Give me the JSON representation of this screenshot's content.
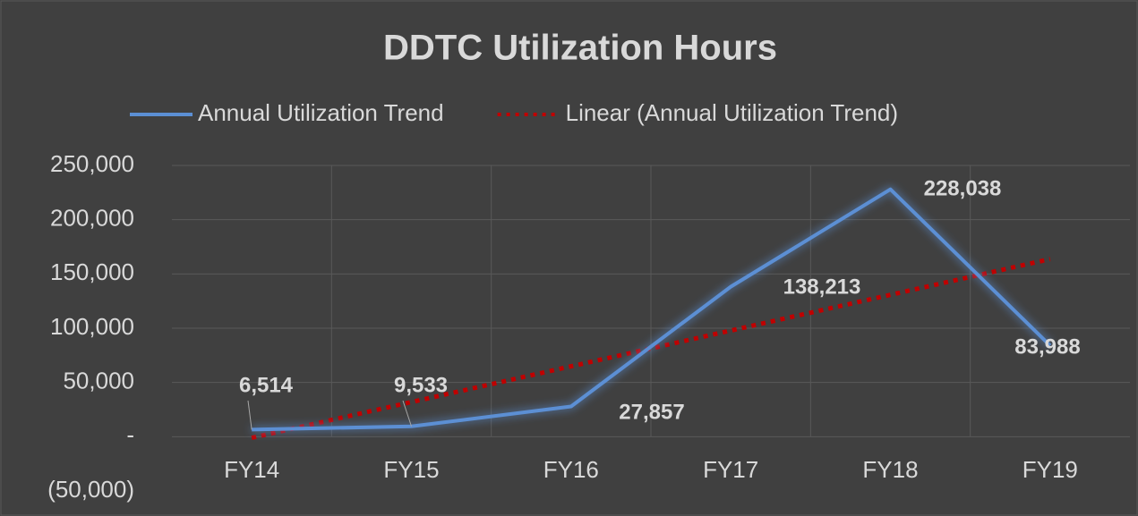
{
  "chart_data": {
    "type": "line",
    "title": "DDTC Utilization Hours",
    "categories": [
      "FY14",
      "FY15",
      "FY16",
      "FY17",
      "FY18",
      "FY19"
    ],
    "series": [
      {
        "name": "Annual Utilization Trend",
        "color": "#5b8fd4",
        "values": [
          6514,
          9533,
          27857,
          138213,
          228038,
          83988
        ],
        "value_labels": [
          "6,514",
          "9,533",
          "27,857",
          "138,213",
          "228,038",
          "83,988"
        ]
      },
      {
        "name": "Linear (Annual Utilization Trend)",
        "color": "#c00000",
        "dotted": true,
        "values": [
          -1017,
          31932,
          64882,
          97832,
          130782,
          163731
        ]
      }
    ],
    "ylim": [
      -50000,
      250000
    ],
    "yticks": [
      {
        "value": -50000,
        "label": "(50,000)"
      },
      {
        "value": 0,
        "label": "-"
      },
      {
        "value": 50000,
        "label": "50,000"
      },
      {
        "value": 100000,
        "label": "100,000"
      },
      {
        "value": 150000,
        "label": "150,000"
      },
      {
        "value": 200000,
        "label": "200,000"
      },
      {
        "value": 250000,
        "label": "250,000"
      }
    ],
    "grid": true,
    "legend": "top"
  }
}
